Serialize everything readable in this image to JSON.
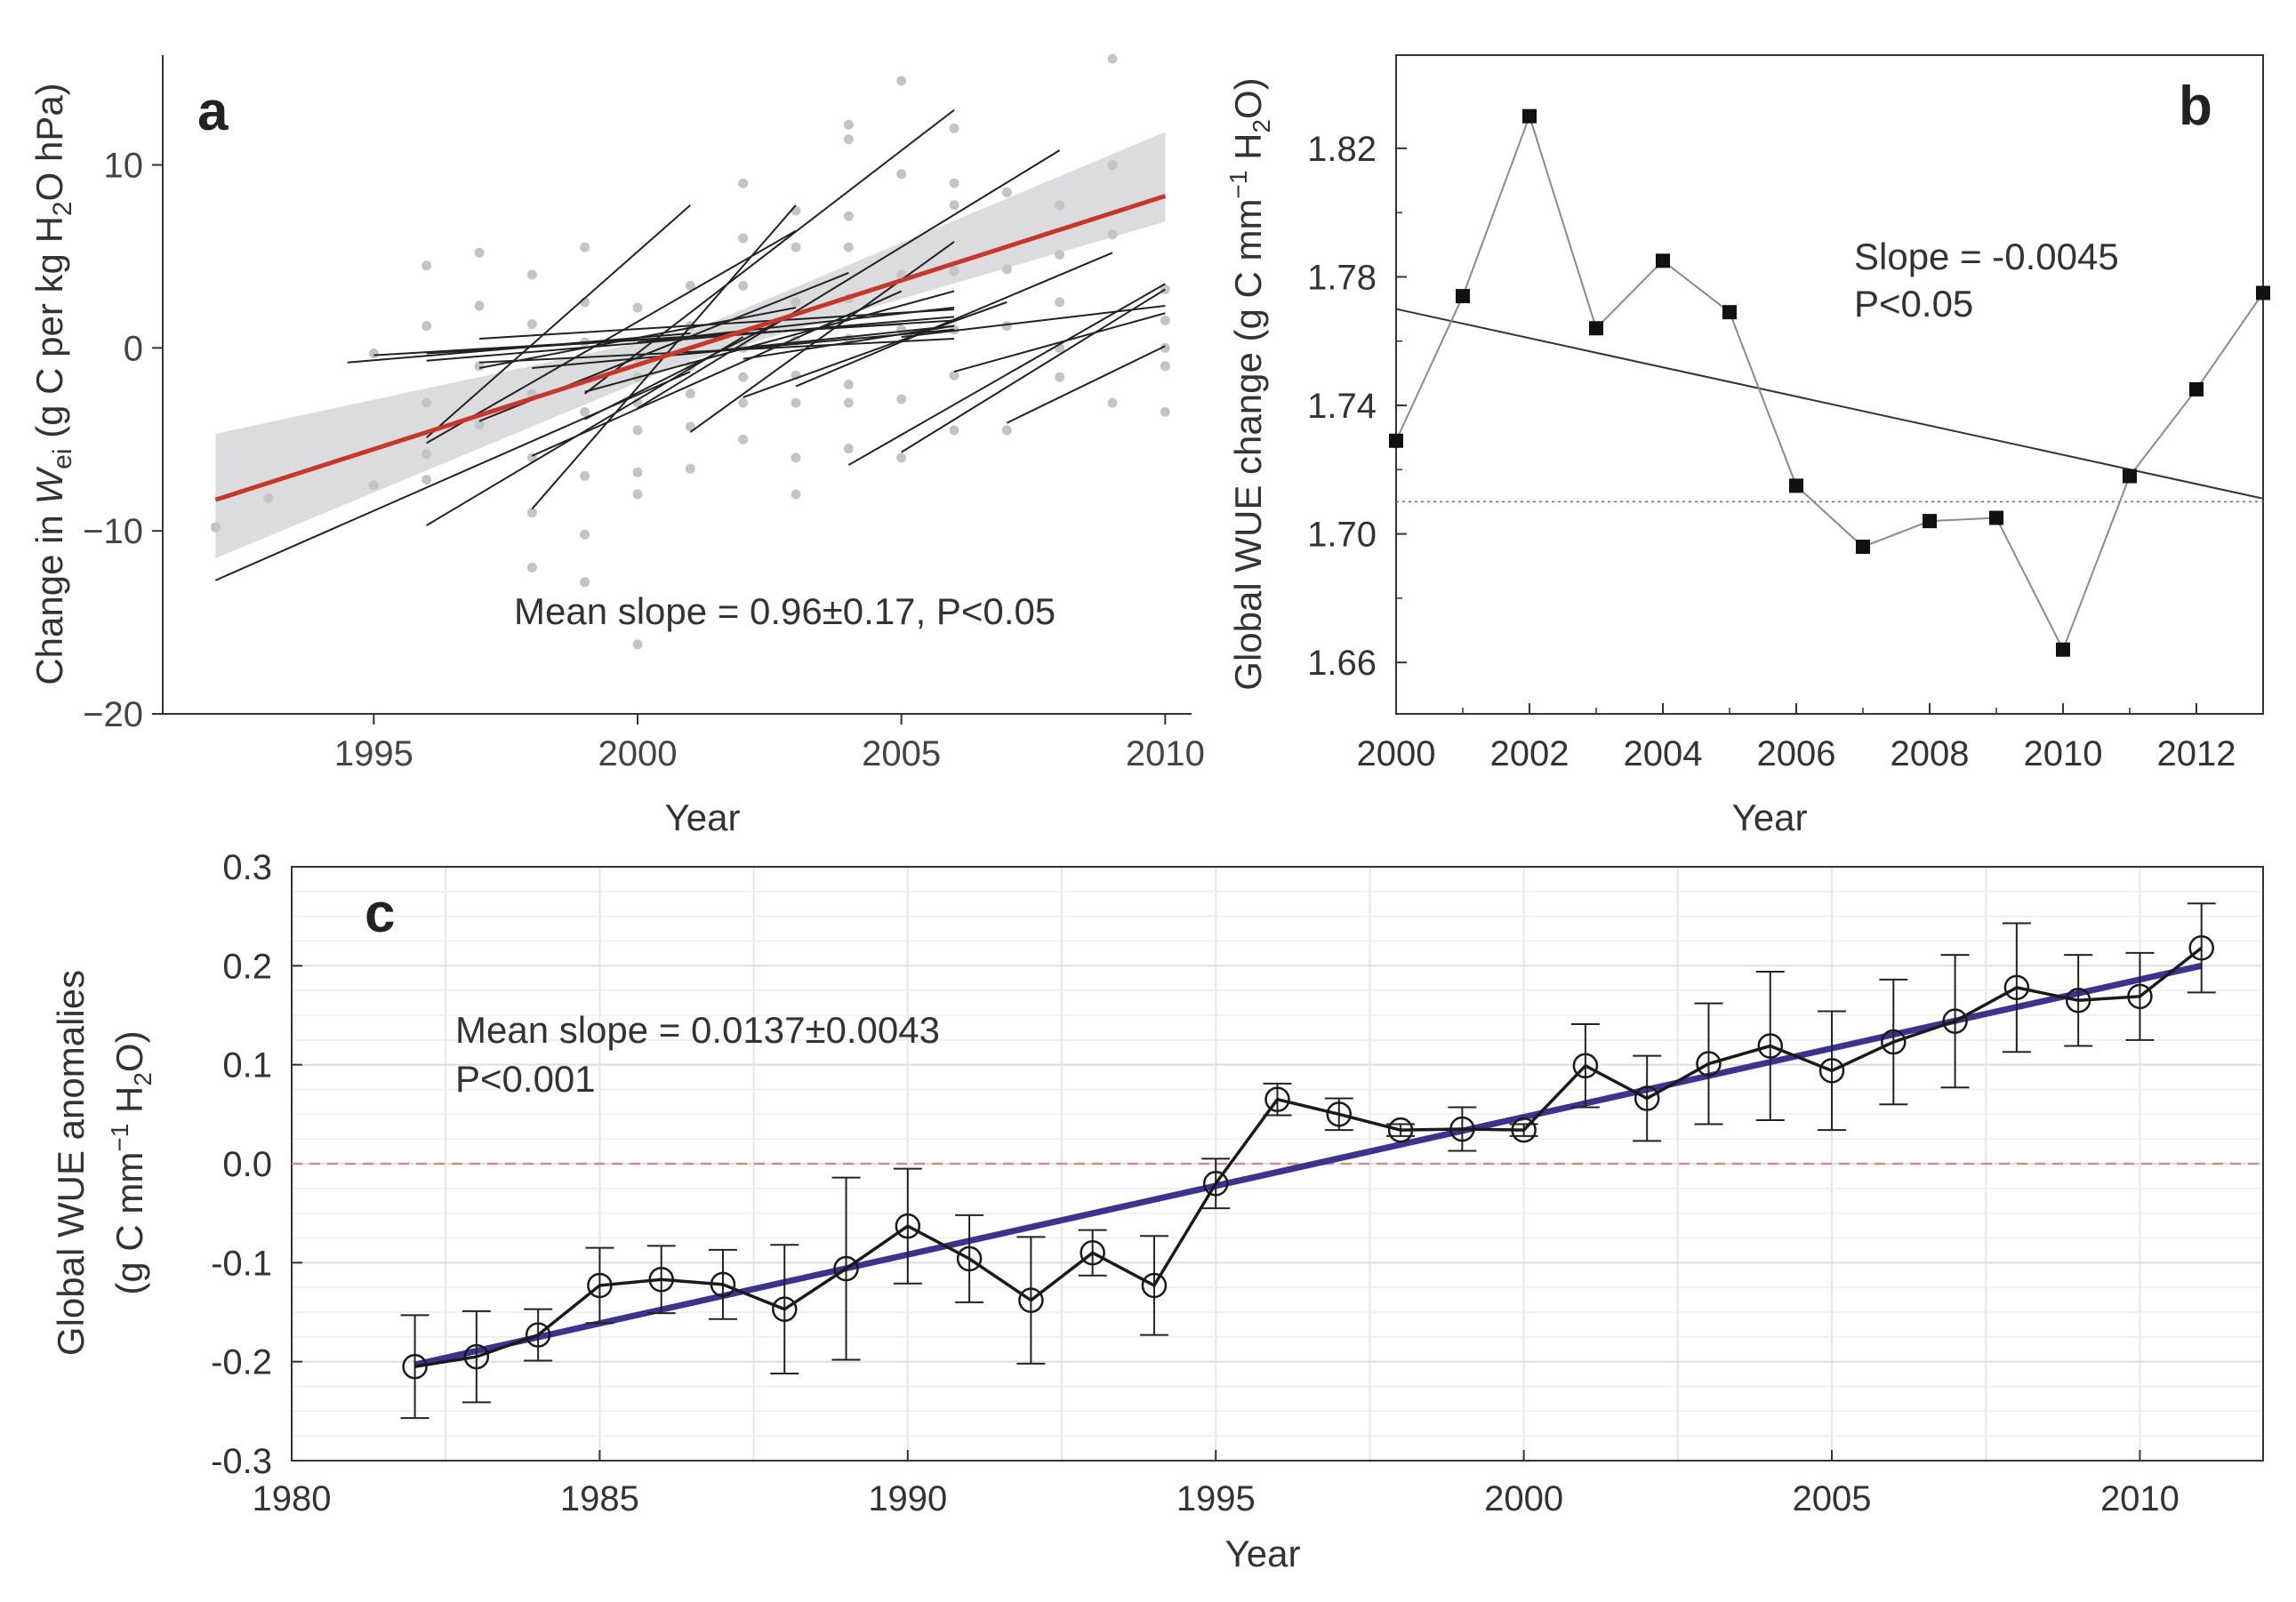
{
  "chart_data": [
    {
      "panel": "a",
      "type": "scatter",
      "xlabel": "Year",
      "ylabel_parts": {
        "prefix": "Change in ",
        "var": "W",
        "sub": "ei",
        "mid": " (g C per kg H",
        "sub2": "2",
        "suffix": "O hPa)"
      },
      "annotation": "Mean slope = 0.96±0.17, P<0.05",
      "xlim": [
        1991,
        2010.5
      ],
      "ylim": [
        -20,
        16
      ],
      "xticks": [
        1995,
        2000,
        2005,
        2010
      ],
      "yticks": [
        10,
        0,
        -10,
        -20
      ],
      "ytick_labels": [
        "10",
        "0",
        "−10",
        "−20"
      ],
      "mean_fit": {
        "x": [
          1992,
          2010
        ],
        "y": [
          -8.3,
          8.3
        ]
      },
      "confidence_band": {
        "x": [
          1992,
          2001,
          2010
        ],
        "upper": [
          -4.7,
          0.9,
          11.8
        ],
        "lower": [
          -11.5,
          -0.7,
          6.9
        ]
      },
      "site_regressions": [
        {
          "x": [
            1992,
            2001
          ],
          "y": [
            -12.7,
            -1.3
          ]
        },
        {
          "x": [
            1994.5,
            2001
          ],
          "y": [
            -0.8,
            0.8
          ]
        },
        {
          "x": [
            1995,
            2005
          ],
          "y": [
            -0.4,
            1.3
          ]
        },
        {
          "x": [
            1996,
            2006
          ],
          "y": [
            -0.7,
            1.7
          ]
        },
        {
          "x": [
            1996,
            2006
          ],
          "y": [
            -0.3,
            1.5
          ]
        },
        {
          "x": [
            1996,
            2002
          ],
          "y": [
            -9.7,
            0.6
          ]
        },
        {
          "x": [
            1996,
            2001
          ],
          "y": [
            -4.9,
            7.8
          ]
        },
        {
          "x": [
            1996,
            2003
          ],
          "y": [
            -5.2,
            6.4
          ]
        },
        {
          "x": [
            1997,
            2006
          ],
          "y": [
            0.5,
            2.1
          ]
        },
        {
          "x": [
            1997,
            2006
          ],
          "y": [
            -0.8,
            0.5
          ]
        },
        {
          "x": [
            1997,
            2003
          ],
          "y": [
            -1.1,
            2.2
          ]
        },
        {
          "x": [
            1997,
            2004
          ],
          "y": [
            -4.0,
            4.1
          ]
        },
        {
          "x": [
            1998,
            2006
          ],
          "y": [
            -1.1,
            1.0
          ]
        },
        {
          "x": [
            1998,
            2003
          ],
          "y": [
            -8.8,
            7.8
          ]
        },
        {
          "x": [
            1998,
            2005
          ],
          "y": [
            -5.9,
            3.1
          ]
        },
        {
          "x": [
            1999,
            2006
          ],
          "y": [
            -2.4,
            3.1
          ]
        },
        {
          "x": [
            1999,
            2003
          ],
          "y": [
            -3.9,
            1.9
          ]
        },
        {
          "x": [
            1999,
            2006
          ],
          "y": [
            -2.5,
            13.0
          ]
        },
        {
          "x": [
            2000,
            2006
          ],
          "y": [
            0.3,
            2.2
          ]
        },
        {
          "x": [
            2000,
            2008
          ],
          "y": [
            -3.3,
            10.8
          ]
        },
        {
          "x": [
            2001,
            2006
          ],
          "y": [
            -4.6,
            5.8
          ]
        },
        {
          "x": [
            2001,
            2006
          ],
          "y": [
            -0.3,
            1.2
          ]
        },
        {
          "x": [
            2002,
            2006
          ],
          "y": [
            -0.6,
            1.2
          ]
        },
        {
          "x": [
            2002,
            2007
          ],
          "y": [
            -2.7,
            2.5
          ]
        },
        {
          "x": [
            2003,
            2009
          ],
          "y": [
            -2.1,
            5.2
          ]
        },
        {
          "x": [
            2004,
            2010
          ],
          "y": [
            -6.4,
            3.5
          ]
        },
        {
          "x": [
            2005,
            2010
          ],
          "y": [
            -5.7,
            3.2
          ]
        },
        {
          "x": [
            2005,
            2010
          ],
          "y": [
            0.6,
            2.3
          ]
        },
        {
          "x": [
            2006,
            2010
          ],
          "y": [
            -1.3,
            1.9
          ]
        },
        {
          "x": [
            2007,
            2010
          ],
          "y": [
            -4.1,
            0.1
          ]
        }
      ],
      "points": {
        "x": [
          1992,
          1993,
          1995,
          1995,
          1996,
          1996,
          1996,
          1996,
          1996,
          1997,
          1997,
          1997,
          1997,
          1998,
          1998,
          1998,
          1998,
          1998,
          1998,
          1999,
          1999,
          1999,
          1999,
          1999,
          1999,
          1999,
          2000,
          2000,
          2000,
          2000,
          2000,
          2000,
          2000,
          2000,
          2001,
          2001,
          2001,
          2001,
          2001,
          2001,
          2002,
          2002,
          2002,
          2002,
          2002,
          2002,
          2002,
          2003,
          2003,
          2003,
          2003,
          2003,
          2003,
          2003,
          2003,
          2004,
          2004,
          2004,
          2004,
          2004,
          2004,
          2004,
          2004,
          2004,
          2005,
          2005,
          2005,
          2005,
          2005,
          2005,
          2006,
          2006,
          2006,
          2006,
          2006,
          2006,
          2006,
          2007,
          2007,
          2007,
          2007,
          2008,
          2008,
          2008,
          2008,
          2008,
          2009,
          2009,
          2009,
          2009,
          2010,
          2010,
          2010,
          2010,
          2010
        ],
        "y": [
          -9.8,
          -8.2,
          -7.5,
          -0.3,
          4.5,
          1.2,
          -3.0,
          -5.8,
          -7.2,
          5.2,
          2.3,
          -1.0,
          -4.2,
          4.0,
          1.3,
          -2.5,
          -6.0,
          -9.0,
          -12.0,
          5.5,
          2.5,
          0.3,
          -3.5,
          -7.0,
          -10.2,
          -12.8,
          2.2,
          -0.5,
          -1.6,
          -3.0,
          -4.5,
          -6.8,
          -8.0,
          -16.2,
          3.4,
          1.2,
          -1.0,
          -2.5,
          -4.3,
          -6.6,
          9.0,
          6.0,
          3.4,
          0.0,
          -1.6,
          -3.0,
          -5.0,
          7.5,
          5.5,
          2.5,
          0.4,
          -1.5,
          -3.0,
          -6.0,
          -8.0,
          12.2,
          11.4,
          7.2,
          5.5,
          2.7,
          0.5,
          -2.0,
          -3.0,
          -5.5,
          14.6,
          9.5,
          4.0,
          1.0,
          -2.8,
          -6.0,
          12.0,
          9.0,
          7.8,
          4.2,
          1.0,
          -1.5,
          -4.5,
          8.5,
          4.3,
          1.2,
          -4.5,
          7.8,
          5.1,
          2.5,
          0.0,
          -1.6,
          15.8,
          10.0,
          6.2,
          -3.0,
          3.2,
          1.5,
          0.0,
          -1.0,
          -3.5
        ]
      }
    },
    {
      "panel": "b",
      "type": "line",
      "xlabel": "Year",
      "ylabel_parts": {
        "prefix": "Global WUE change (g C mm",
        "sup": "−1",
        "mid": " H",
        "sub": "2",
        "suffix": "O)"
      },
      "annotation": [
        "Slope = -0.0045",
        "P<0.05"
      ],
      "xlim": [
        2000,
        2013
      ],
      "ylim": [
        1.644,
        1.849
      ],
      "xticks": [
        2000,
        2002,
        2004,
        2006,
        2008,
        2010,
        2012
      ],
      "yticks": [
        1.82,
        1.78,
        1.74,
        1.7,
        1.66
      ],
      "ytick_labels": [
        "1.82",
        "1.78",
        "1.74",
        "1.70",
        "1.66"
      ],
      "x": [
        2000,
        2001,
        2002,
        2003,
        2004,
        2005,
        2006,
        2007,
        2008,
        2009,
        2010,
        2011,
        2012,
        2013
      ],
      "y": [
        1.729,
        1.774,
        1.83,
        1.764,
        1.785,
        1.769,
        1.715,
        1.696,
        1.704,
        1.705,
        1.664,
        1.718,
        1.745,
        1.775
      ],
      "trend": {
        "x": [
          2000,
          2013
        ],
        "y": [
          1.77,
          1.711
        ]
      },
      "reference": 1.71
    },
    {
      "panel": "c",
      "type": "line",
      "xlabel": "Year",
      "ylabel": "Global WUE anomalies",
      "ylabel2_parts": {
        "prefix": "(g C mm",
        "sup": "−1",
        "mid": " H",
        "sub": "2",
        "suffix": "O)"
      },
      "annotation": [
        "Mean slope = 0.0137±0.0043",
        "P<0.001"
      ],
      "xlim": [
        1980,
        2012
      ],
      "ylim": [
        -0.3,
        0.3
      ],
      "xticks": [
        1980,
        1985,
        1990,
        1995,
        2000,
        2005,
        2010
      ],
      "yticks": [
        0.3,
        0.2,
        0.1,
        0.0,
        -0.1,
        -0.2,
        -0.3
      ],
      "ytick_labels": [
        "0.3",
        "0.2",
        "0.1",
        "0.0",
        "-0.1",
        "-0.2",
        "-0.3"
      ],
      "x": [
        1982,
        1983,
        1984,
        1985,
        1986,
        1987,
        1988,
        1989,
        1990,
        1991,
        1992,
        1993,
        1994,
        1995,
        1996,
        1997,
        1998,
        1999,
        2000,
        2001,
        2002,
        2003,
        2004,
        2005,
        2006,
        2007,
        2008,
        2009,
        2010,
        2011
      ],
      "y": [
        -0.205,
        -0.195,
        -0.173,
        -0.123,
        -0.117,
        -0.122,
        -0.147,
        -0.106,
        -0.063,
        -0.096,
        -0.138,
        -0.09,
        -0.123,
        -0.02,
        0.065,
        0.05,
        0.034,
        0.035,
        0.034,
        0.099,
        0.066,
        0.101,
        0.119,
        0.094,
        0.123,
        0.144,
        0.178,
        0.165,
        0.169,
        0.218
      ],
      "err": [
        0.052,
        0.046,
        0.026,
        0.038,
        0.034,
        0.035,
        0.065,
        0.092,
        0.058,
        0.044,
        0.064,
        0.023,
        0.05,
        0.025,
        0.016,
        0.016,
        0.006,
        0.022,
        0.006,
        0.042,
        0.043,
        0.061,
        0.075,
        0.06,
        0.063,
        0.067,
        0.065,
        0.046,
        0.044,
        0.045
      ],
      "trend": {
        "x": [
          1982,
          2011
        ],
        "y": [
          -0.203,
          0.2
        ]
      },
      "reference": 0.0
    }
  ],
  "panel_labels": {
    "a": "a",
    "b": "b",
    "c": "c"
  },
  "colors": {
    "mean_fit": "#c8382a",
    "band": "#d6d6d8",
    "points": "#c4c4c4",
    "site_lines": "#222222",
    "series_b": "#8a8a8a",
    "trend_c": "#3a348e",
    "reference_c": "#d98a80",
    "axis": "#333333"
  }
}
